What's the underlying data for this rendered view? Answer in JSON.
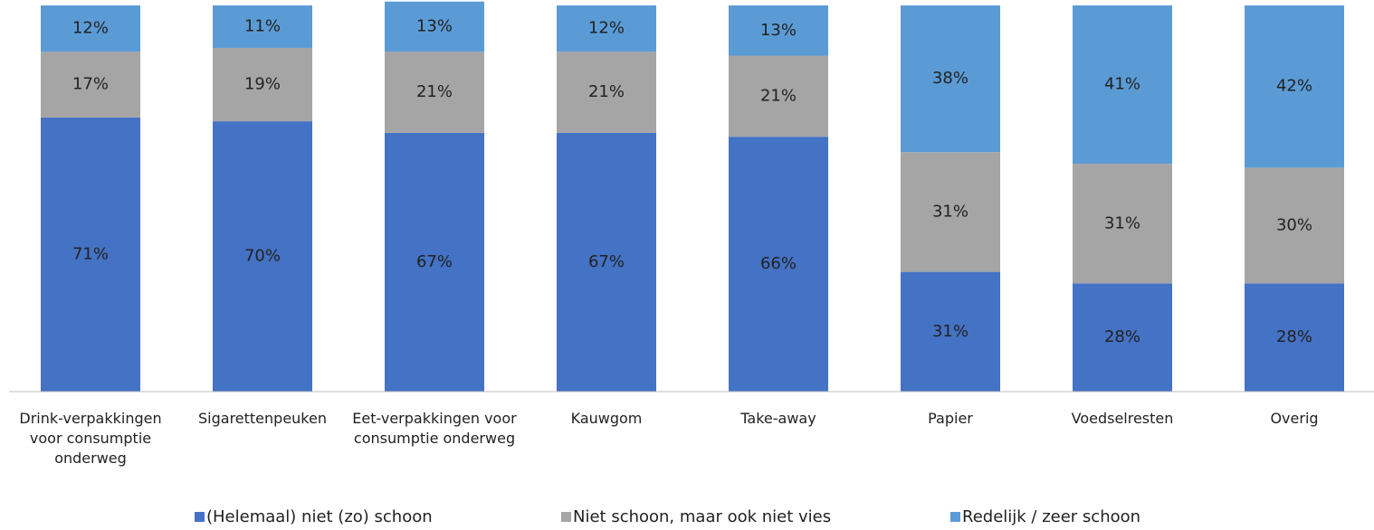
{
  "chart_data": {
    "type": "stacked-bar",
    "categories": [
      "Drink-verpakkingen voor consumptie onderweg",
      "Sigarettenpeuken",
      "Eet-verpakkingen voor consumptie onderweg",
      "Kauwgom",
      "Take-away",
      "Papier",
      "Voedselresten",
      "Overig"
    ],
    "series": [
      {
        "name": "(Helemaal) niet (zo) schoon",
        "color": "#4472c4",
        "values": [
          71,
          70,
          67,
          67,
          66,
          31,
          28,
          28
        ],
        "value_labels": [
          "71%",
          "70%",
          "67%",
          "67%",
          "66%",
          "31%",
          "28%",
          "28%"
        ]
      },
      {
        "name": "Niet schoon, maar ook niet vies",
        "color": "#a5a5a5",
        "values": [
          17,
          19,
          21,
          21,
          21,
          31,
          31,
          30
        ],
        "value_labels": [
          "17%",
          "19%",
          "21%",
          "21%",
          "21%",
          "31%",
          "31%",
          "30%"
        ]
      },
      {
        "name": "Redelijk / zeer schoon",
        "color": "#5b9bd5",
        "values": [
          12,
          11,
          13,
          12,
          13,
          38,
          41,
          42
        ],
        "value_labels": [
          "12%",
          "11%",
          "13%",
          "12%",
          "13%",
          "38%",
          "41%",
          "42%"
        ]
      }
    ],
    "ylim": [
      0,
      100
    ],
    "legend": "bottom"
  }
}
